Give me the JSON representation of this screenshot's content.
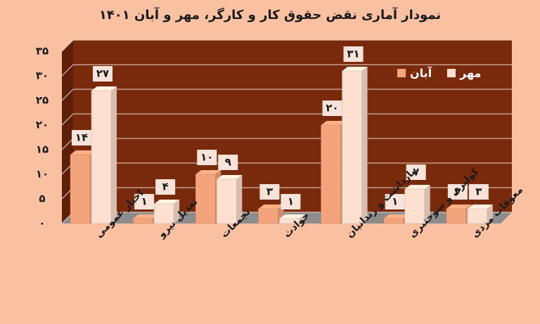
{
  "chart_data": {
    "type": "bar3d",
    "title": "نمودار آماری نقض حقوق کار و کارگر، مهر و آبان ۱۴۰۱",
    "categories": [
      "اخبار عمومی",
      "تعدیل نیرو",
      "تجمعات",
      "حوادث",
      "بازداشت و زندانیان",
      "کولبری و سوختبری",
      "معوقات مزدی"
    ],
    "series": [
      {
        "name": "آبان",
        "color": "#f4a47c",
        "values": [
          14,
          1,
          10,
          3,
          20,
          1,
          3
        ],
        "value_labels": [
          "۱۴",
          "۱",
          "۱۰",
          "۳",
          "۲۰",
          "۱",
          "۳"
        ]
      },
      {
        "name": "مهر",
        "color": "#fde0d0",
        "values": [
          27,
          4,
          9,
          1,
          31,
          7,
          3
        ],
        "value_labels": [
          "۲۷",
          "۴",
          "۹",
          "۱",
          "۳۱",
          "۷",
          "۳"
        ]
      }
    ],
    "ylim": [
      0,
      35
    ],
    "yticks": [
      {
        "value": 0,
        "label": "۰"
      },
      {
        "value": 5,
        "label": "۵"
      },
      {
        "value": 10,
        "label": "۱۰"
      },
      {
        "value": 15,
        "label": "۱۵"
      },
      {
        "value": 20,
        "label": "۲۰"
      },
      {
        "value": 25,
        "label": "۲۵"
      },
      {
        "value": 30,
        "label": "۳۰"
      },
      {
        "value": 35,
        "label": "۳۵"
      }
    ],
    "grid": true
  }
}
